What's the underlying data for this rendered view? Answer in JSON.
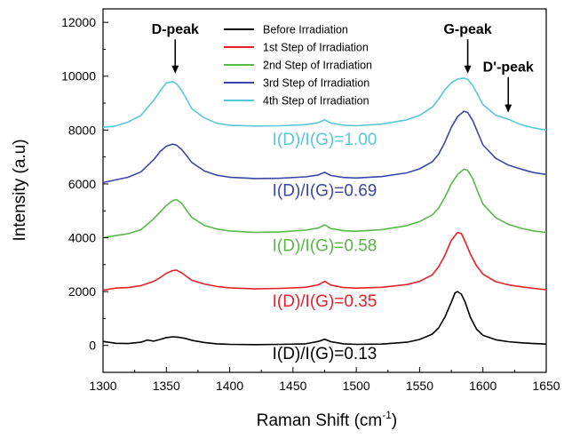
{
  "chart_data": {
    "type": "line",
    "xlabel": "Raman Shift (cm",
    "xlabel_sup": "-1",
    "xlabel_tail": ")",
    "ylabel": "Intensity (a.u)",
    "xlim": [
      1300,
      1650
    ],
    "ylim": [
      -1000,
      12500
    ],
    "x_ticks": [
      1300,
      1350,
      1400,
      1450,
      1500,
      1550,
      1600,
      1650
    ],
    "y_ticks": [
      0,
      2000,
      4000,
      6000,
      8000,
      10000,
      12000
    ],
    "grid": false,
    "legend_position": "top-center",
    "series": [
      {
        "name": "Before Irradiation",
        "color": "#000000",
        "x": [
          1300,
          1310,
          1320,
          1330,
          1335,
          1340,
          1345,
          1350,
          1355,
          1360,
          1365,
          1370,
          1380,
          1390,
          1400,
          1420,
          1440,
          1460,
          1470,
          1475,
          1480,
          1490,
          1500,
          1520,
          1540,
          1550,
          1560,
          1565,
          1570,
          1575,
          1578,
          1580,
          1583,
          1586,
          1590,
          1595,
          1600,
          1610,
          1620,
          1630,
          1640,
          1650
        ],
        "y": [
          150,
          80,
          70,
          120,
          200,
          160,
          220,
          290,
          320,
          300,
          260,
          190,
          110,
          60,
          40,
          30,
          40,
          60,
          150,
          230,
          140,
          60,
          40,
          50,
          120,
          220,
          420,
          650,
          1050,
          1600,
          1950,
          2000,
          1900,
          1600,
          1050,
          600,
          380,
          210,
          140,
          100,
          70,
          50
        ]
      },
      {
        "name": "1st Step of Irradiation",
        "color": "#e8202a",
        "x": [
          1300,
          1310,
          1320,
          1330,
          1340,
          1345,
          1350,
          1355,
          1358,
          1362,
          1366,
          1370,
          1380,
          1390,
          1400,
          1420,
          1440,
          1460,
          1470,
          1475,
          1480,
          1490,
          1500,
          1520,
          1540,
          1550,
          1560,
          1565,
          1570,
          1575,
          1580,
          1583,
          1586,
          1590,
          1595,
          1600,
          1610,
          1620,
          1630,
          1640,
          1650
        ],
        "y": [
          2050,
          2130,
          2150,
          2220,
          2380,
          2520,
          2680,
          2780,
          2800,
          2700,
          2560,
          2420,
          2280,
          2190,
          2140,
          2100,
          2120,
          2160,
          2250,
          2380,
          2240,
          2150,
          2130,
          2160,
          2260,
          2380,
          2620,
          2920,
          3350,
          3900,
          4200,
          4150,
          3850,
          3400,
          2950,
          2650,
          2370,
          2250,
          2180,
          2120,
          2070
        ]
      },
      {
        "name": "2nd Step of Irradiation",
        "color": "#58b848",
        "x": [
          1300,
          1310,
          1320,
          1330,
          1340,
          1345,
          1350,
          1355,
          1358,
          1362,
          1366,
          1370,
          1380,
          1390,
          1400,
          1420,
          1440,
          1460,
          1470,
          1475,
          1480,
          1490,
          1500,
          1520,
          1540,
          1550,
          1560,
          1565,
          1570,
          1575,
          1580,
          1585,
          1588,
          1592,
          1596,
          1600,
          1610,
          1620,
          1630,
          1640,
          1650
        ],
        "y": [
          4000,
          4080,
          4150,
          4300,
          4700,
          4950,
          5200,
          5380,
          5420,
          5280,
          5020,
          4760,
          4460,
          4320,
          4250,
          4200,
          4220,
          4280,
          4360,
          4480,
          4340,
          4260,
          4240,
          4300,
          4450,
          4600,
          4850,
          5100,
          5500,
          6000,
          6350,
          6550,
          6500,
          6200,
          5700,
          5250,
          4750,
          4500,
          4350,
          4250,
          4200
        ]
      },
      {
        "name": "3rd Step of Irradiation",
        "color": "#3a47a8",
        "x": [
          1300,
          1310,
          1320,
          1330,
          1340,
          1345,
          1350,
          1355,
          1358,
          1362,
          1366,
          1370,
          1380,
          1390,
          1400,
          1420,
          1440,
          1460,
          1470,
          1475,
          1480,
          1490,
          1500,
          1520,
          1540,
          1550,
          1560,
          1565,
          1570,
          1575,
          1580,
          1585,
          1588,
          1592,
          1596,
          1600,
          1610,
          1620,
          1630,
          1640,
          1650
        ],
        "y": [
          6050,
          6150,
          6250,
          6450,
          6900,
          7200,
          7400,
          7480,
          7440,
          7280,
          7050,
          6800,
          6480,
          6320,
          6250,
          6200,
          6210,
          6260,
          6330,
          6430,
          6310,
          6240,
          6220,
          6270,
          6410,
          6560,
          6820,
          7100,
          7550,
          8100,
          8500,
          8700,
          8650,
          8350,
          7900,
          7450,
          6950,
          6700,
          6550,
          6420,
          6350
        ]
      },
      {
        "name": "4th Step of Irradiation",
        "color": "#58c8d8",
        "x": [
          1300,
          1310,
          1320,
          1330,
          1340,
          1345,
          1350,
          1355,
          1358,
          1362,
          1366,
          1370,
          1380,
          1390,
          1400,
          1420,
          1440,
          1460,
          1470,
          1475,
          1480,
          1490,
          1500,
          1520,
          1540,
          1550,
          1560,
          1565,
          1570,
          1575,
          1580,
          1585,
          1588,
          1592,
          1596,
          1600,
          1610,
          1620,
          1630,
          1640,
          1650
        ],
        "y": [
          8100,
          8150,
          8300,
          8550,
          9100,
          9450,
          9750,
          9800,
          9720,
          9480,
          9150,
          8800,
          8450,
          8250,
          8180,
          8150,
          8160,
          8200,
          8280,
          8380,
          8260,
          8180,
          8160,
          8220,
          8380,
          8550,
          8850,
          9150,
          9500,
          9750,
          9900,
          9930,
          9880,
          9650,
          9300,
          8950,
          8550,
          8400,
          8200,
          8080,
          8000
        ]
      }
    ],
    "annotations": [
      {
        "text": "D-peak",
        "x": 1357,
        "y": 11700,
        "arrow_to": 10100
      },
      {
        "text": "G-peak",
        "x": 1588,
        "y": 11700,
        "arrow_to": 10100
      },
      {
        "text": "D'-peak",
        "x": 1620,
        "y": 10300,
        "arrow_to": 8650
      }
    ],
    "ratio_labels": [
      {
        "text": "I(D)/I(G)=1.00",
        "color": "#58c8d8",
        "x": 1475,
        "y": 7450
      },
      {
        "text": "I(D)/I(G)=0.69",
        "color": "#3a47a8",
        "x": 1475,
        "y": 5550
      },
      {
        "text": "I(D)/I(G)=0.58",
        "color": "#58b848",
        "x": 1475,
        "y": 3500
      },
      {
        "text": "I(D)/I(G)=0.35",
        "color": "#e8202a",
        "x": 1475,
        "y": 1450
      },
      {
        "text": "I(D)/I(G)=0.13",
        "color": "#000000",
        "x": 1475,
        "y": -500
      }
    ]
  }
}
